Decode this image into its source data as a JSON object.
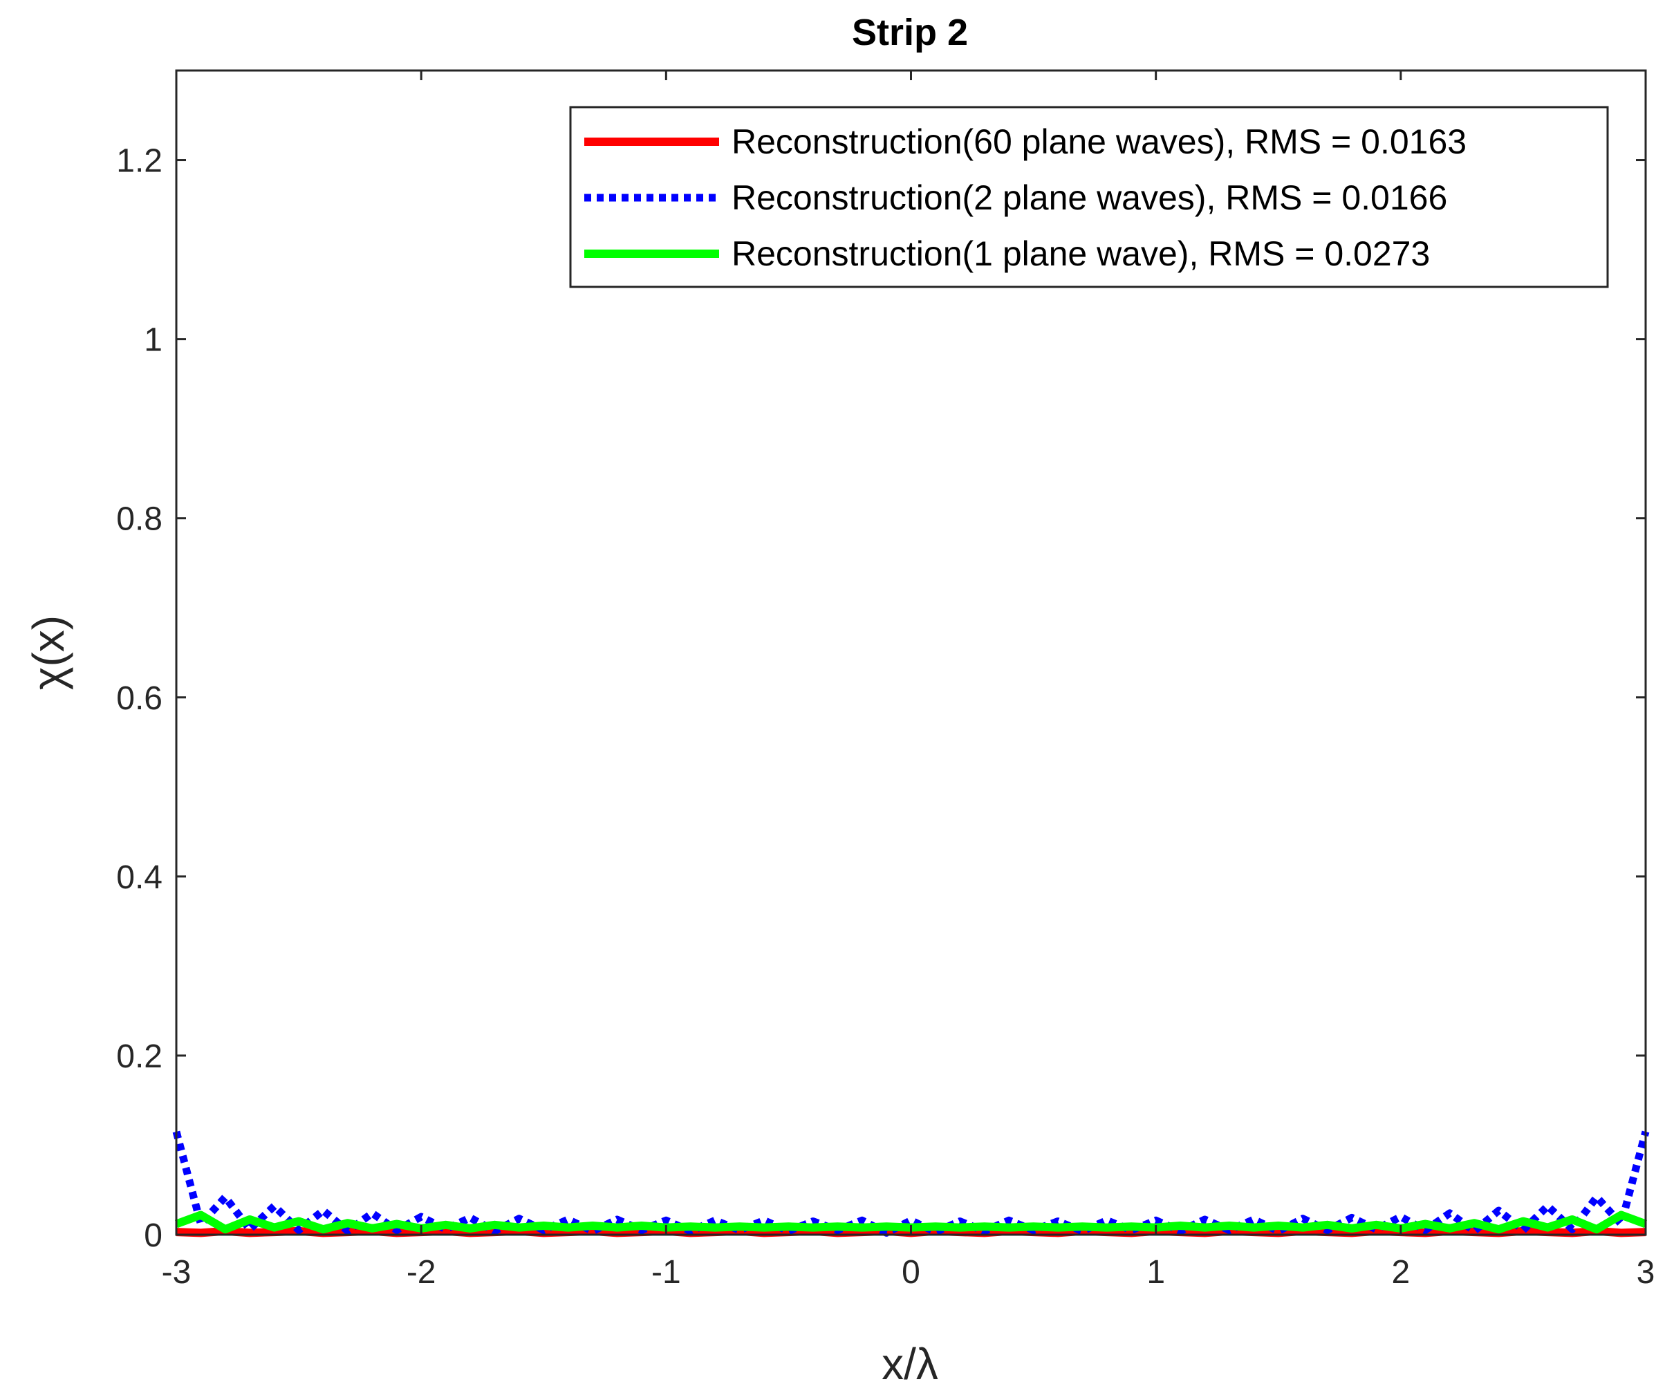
{
  "chart_data": {
    "type": "line",
    "title": "Strip 2",
    "xlabel": "x/λ",
    "ylabel": "χ(x)",
    "xlim": [
      -3,
      3
    ],
    "ylim": [
      0,
      1.3
    ],
    "xticks": [
      -3,
      -2,
      -1,
      0,
      1,
      2,
      3
    ],
    "xtick_labels": [
      "-3",
      "-2",
      "-1",
      "0",
      "1",
      "2",
      "3"
    ],
    "yticks": [
      0,
      0.2,
      0.4,
      0.6,
      0.8,
      1,
      1.2
    ],
    "ytick_labels": [
      "0",
      "0.2",
      "0.4",
      "0.6",
      "0.8",
      "1",
      "1.2"
    ],
    "grid": false,
    "legend_position": "top-right",
    "x": [
      -3.0,
      -2.9,
      -2.8,
      -2.7,
      -2.6,
      -2.5,
      -2.4,
      -2.3,
      -2.2,
      -2.1,
      -2.0,
      -1.9,
      -1.8,
      -1.7,
      -1.6,
      -1.5,
      -1.4,
      -1.3,
      -1.2,
      -1.1,
      -1.0,
      -0.9,
      -0.8,
      -0.7,
      -0.6,
      -0.5,
      -0.4,
      -0.3,
      -0.2,
      -0.1,
      0.0,
      0.1,
      0.2,
      0.3,
      0.4,
      0.5,
      0.6,
      0.7,
      0.8,
      0.9,
      1.0,
      1.1,
      1.2,
      1.3,
      1.4,
      1.5,
      1.6,
      1.7,
      1.8,
      1.9,
      2.0,
      2.1,
      2.2,
      2.3,
      2.4,
      2.5,
      2.6,
      2.7,
      2.8,
      2.9,
      3.0
    ],
    "series": [
      {
        "name": "Reconstruction(60 plane waves), RMS = 0.0163",
        "color": "#ff0000",
        "style": "solid",
        "values": [
          0.003,
          0.002,
          0.004,
          0.002,
          0.003,
          0.004,
          0.002,
          0.003,
          0.004,
          0.002,
          0.003,
          0.004,
          0.002,
          0.003,
          0.004,
          0.002,
          0.003,
          0.004,
          0.002,
          0.003,
          0.004,
          0.002,
          0.003,
          0.004,
          0.002,
          0.003,
          0.004,
          0.002,
          0.003,
          0.004,
          0.002,
          0.004,
          0.003,
          0.002,
          0.004,
          0.003,
          0.002,
          0.004,
          0.003,
          0.002,
          0.004,
          0.003,
          0.002,
          0.004,
          0.003,
          0.002,
          0.004,
          0.003,
          0.002,
          0.004,
          0.003,
          0.002,
          0.004,
          0.003,
          0.002,
          0.004,
          0.003,
          0.002,
          0.004,
          0.002,
          0.003
        ]
      },
      {
        "name": "Reconstruction(2 plane waves), RMS = 0.0166",
        "color": "#0000ff",
        "style": "dotted",
        "values": [
          0.115,
          0.012,
          0.042,
          0.006,
          0.032,
          0.005,
          0.027,
          0.004,
          0.024,
          0.005,
          0.02,
          0.006,
          0.019,
          0.004,
          0.018,
          0.005,
          0.017,
          0.004,
          0.017,
          0.005,
          0.016,
          0.004,
          0.016,
          0.005,
          0.016,
          0.004,
          0.015,
          0.005,
          0.016,
          0.002,
          0.016,
          0.003,
          0.015,
          0.004,
          0.016,
          0.005,
          0.015,
          0.004,
          0.016,
          0.005,
          0.016,
          0.004,
          0.017,
          0.005,
          0.017,
          0.004,
          0.018,
          0.005,
          0.019,
          0.006,
          0.02,
          0.005,
          0.024,
          0.004,
          0.027,
          0.005,
          0.032,
          0.006,
          0.042,
          0.012,
          0.115
        ]
      },
      {
        "name": "Reconstruction(1 plane wave), RMS = 0.0273",
        "color": "#00ff00",
        "style": "solid",
        "values": [
          0.012,
          0.022,
          0.006,
          0.017,
          0.008,
          0.015,
          0.006,
          0.013,
          0.007,
          0.012,
          0.007,
          0.011,
          0.007,
          0.011,
          0.008,
          0.01,
          0.008,
          0.01,
          0.008,
          0.01,
          0.008,
          0.009,
          0.008,
          0.009,
          0.008,
          0.009,
          0.008,
          0.009,
          0.008,
          0.009,
          0.008,
          0.009,
          0.008,
          0.009,
          0.008,
          0.009,
          0.008,
          0.009,
          0.008,
          0.009,
          0.008,
          0.01,
          0.008,
          0.01,
          0.008,
          0.01,
          0.008,
          0.011,
          0.007,
          0.011,
          0.007,
          0.012,
          0.007,
          0.013,
          0.006,
          0.015,
          0.008,
          0.017,
          0.006,
          0.022,
          0.012
        ]
      }
    ]
  }
}
